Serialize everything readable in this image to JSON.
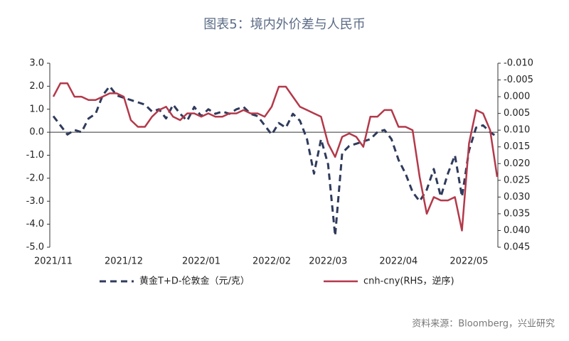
{
  "chart_data": {
    "type": "line",
    "title": "图表5：境内外价差与人民币",
    "source": "资料来源：Bloomberg，兴业研究",
    "categories": [
      "2021/11",
      null,
      null,
      null,
      null,
      null,
      null,
      null,
      null,
      null,
      "2021/12",
      null,
      null,
      null,
      null,
      null,
      null,
      null,
      null,
      null,
      null,
      "2022/01",
      null,
      null,
      null,
      null,
      null,
      null,
      null,
      null,
      null,
      "2022/02",
      null,
      null,
      null,
      null,
      null,
      null,
      null,
      "2022/03",
      null,
      null,
      null,
      null,
      null,
      null,
      null,
      null,
      null,
      "2022/04",
      null,
      null,
      null,
      null,
      null,
      null,
      null,
      null,
      null,
      "2022/05",
      null,
      null,
      null,
      null
    ],
    "ylim": [
      -5,
      3
    ],
    "yticks": [
      {
        "value": 3,
        "label": "3.0"
      },
      {
        "value": 2,
        "label": "2.0"
      },
      {
        "value": 1,
        "label": "1.0"
      },
      {
        "value": 0,
        "label": "0.0"
      },
      {
        "value": -1,
        "label": "-1.0"
      },
      {
        "value": -2,
        "label": "-2.0"
      },
      {
        "value": -3,
        "label": "-3.0"
      },
      {
        "value": -4,
        "label": "-4.0"
      },
      {
        "value": -5,
        "label": "-5.0"
      }
    ],
    "y2lim": [
      -0.01,
      0.045
    ],
    "y2_inverted": true,
    "y2ticks": [
      {
        "value": -0.01,
        "label": "-0.010"
      },
      {
        "value": -0.005,
        "label": "-0.005"
      },
      {
        "value": 0,
        "label": "0.000"
      },
      {
        "value": 0.005,
        "label": "0.005"
      },
      {
        "value": 0.01,
        "label": "0.010"
      },
      {
        "value": 0.015,
        "label": "0.015"
      },
      {
        "value": 0.02,
        "label": "0.020"
      },
      {
        "value": 0.025,
        "label": "0.025"
      },
      {
        "value": 0.03,
        "label": "0.030"
      },
      {
        "value": 0.035,
        "label": "0.035"
      },
      {
        "value": 0.04,
        "label": "0.040"
      },
      {
        "value": 0.045,
        "label": "0.045"
      }
    ],
    "series": [
      {
        "name": "黄金T+D-伦敦金（元/克）",
        "color": "#2f3b5c",
        "dashed": true,
        "values": [
          0.7,
          0.3,
          -0.1,
          0.1,
          0.0,
          0.6,
          0.8,
          1.6,
          2.0,
          1.6,
          1.5,
          1.4,
          1.3,
          1.2,
          0.9,
          1.0,
          0.6,
          1.2,
          0.8,
          0.5,
          1.1,
          0.7,
          1.0,
          0.8,
          0.9,
          0.8,
          1.0,
          1.1,
          0.8,
          0.7,
          0.3,
          -0.1,
          0.4,
          0.2,
          0.8,
          0.5,
          -0.3,
          -1.8,
          -0.3,
          -1.4,
          -4.5,
          -0.9,
          -0.6,
          -0.5,
          -0.4,
          -0.3,
          0.0,
          0.1,
          -0.3,
          -1.2,
          -1.8,
          -2.6,
          -3.0,
          -2.5,
          -1.6,
          -2.8,
          -1.8,
          -1.0,
          -2.8,
          -0.8,
          0.2,
          0.3,
          0.0,
          -0.2
        ]
      },
      {
        "name": "cnh-cny(RHS，逆序)",
        "color": "#b3394a",
        "axis": "y2",
        "dashed": false,
        "values": [
          0.0,
          -0.004,
          -0.004,
          0.0,
          0.0,
          0.001,
          0.001,
          0.0,
          -0.001,
          -0.001,
          0.0,
          0.007,
          0.009,
          0.009,
          0.006,
          0.004,
          0.003,
          0.006,
          0.007,
          0.005,
          0.005,
          0.006,
          0.005,
          0.006,
          0.006,
          0.005,
          0.005,
          0.004,
          0.005,
          0.005,
          0.006,
          0.003,
          -0.003,
          -0.003,
          0.0,
          0.003,
          0.004,
          0.005,
          0.006,
          0.014,
          0.018,
          0.012,
          0.011,
          0.012,
          0.015,
          0.006,
          0.006,
          0.004,
          0.004,
          0.009,
          0.009,
          0.01,
          0.024,
          0.035,
          0.03,
          0.031,
          0.031,
          0.03,
          0.04,
          0.014,
          0.004,
          0.005,
          0.01,
          0.024
        ]
      }
    ]
  }
}
